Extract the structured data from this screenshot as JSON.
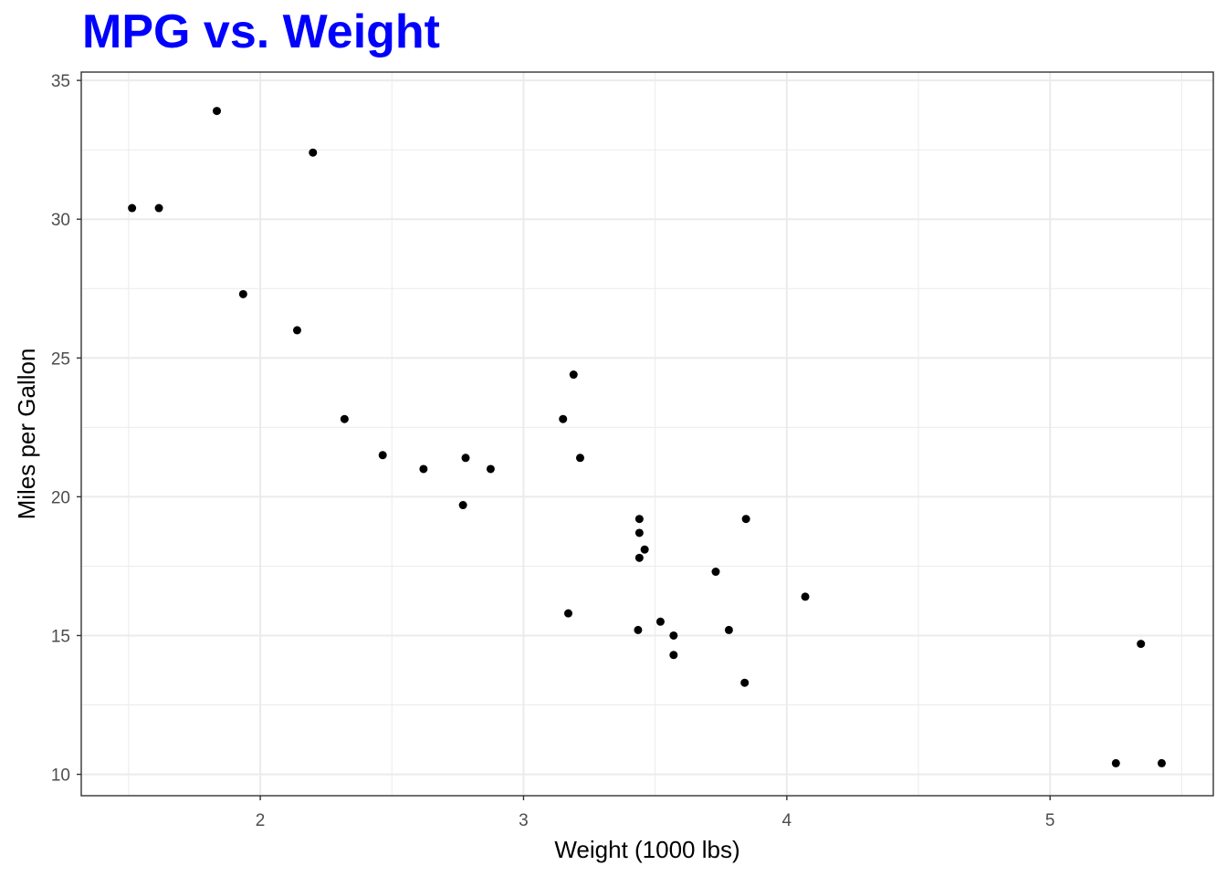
{
  "chart_data": {
    "type": "scatter",
    "title": "MPG vs. Weight",
    "xlabel": "Weight (1000 lbs)",
    "ylabel": "Miles per Gallon",
    "xlim": [
      1.32,
      5.62
    ],
    "ylim": [
      9.23,
      35.3
    ],
    "x_ticks": [
      2,
      3,
      4,
      5
    ],
    "y_ticks": [
      10,
      15,
      20,
      25,
      30,
      35
    ],
    "x_minor": [
      1.5,
      2.5,
      3.5,
      4.5,
      5.5
    ],
    "y_minor": [
      12.5,
      17.5,
      22.5,
      27.5,
      32.5
    ],
    "grid": true,
    "colors": {
      "title": "#0000ff",
      "points": "#000000",
      "grid": "#ebebeb",
      "panel_border": "#333333"
    },
    "points": [
      {
        "x": 1.513,
        "y": 30.4
      },
      {
        "x": 1.615,
        "y": 30.4
      },
      {
        "x": 1.835,
        "y": 33.9
      },
      {
        "x": 1.935,
        "y": 27.3
      },
      {
        "x": 2.14,
        "y": 26.0
      },
      {
        "x": 2.2,
        "y": 32.4
      },
      {
        "x": 2.32,
        "y": 22.8
      },
      {
        "x": 2.465,
        "y": 21.5
      },
      {
        "x": 2.62,
        "y": 21.0
      },
      {
        "x": 2.77,
        "y": 19.7
      },
      {
        "x": 2.78,
        "y": 21.4
      },
      {
        "x": 2.875,
        "y": 21.0
      },
      {
        "x": 3.15,
        "y": 22.8
      },
      {
        "x": 3.17,
        "y": 15.8
      },
      {
        "x": 3.19,
        "y": 24.4
      },
      {
        "x": 3.215,
        "y": 21.4
      },
      {
        "x": 3.435,
        "y": 15.2
      },
      {
        "x": 3.44,
        "y": 18.7
      },
      {
        "x": 3.44,
        "y": 19.2
      },
      {
        "x": 3.44,
        "y": 17.8
      },
      {
        "x": 3.46,
        "y": 18.1
      },
      {
        "x": 3.52,
        "y": 15.5
      },
      {
        "x": 3.57,
        "y": 14.3
      },
      {
        "x": 3.57,
        "y": 15.0
      },
      {
        "x": 3.73,
        "y": 17.3
      },
      {
        "x": 3.78,
        "y": 15.2
      },
      {
        "x": 3.84,
        "y": 13.3
      },
      {
        "x": 3.845,
        "y": 19.2
      },
      {
        "x": 4.07,
        "y": 16.4
      },
      {
        "x": 5.25,
        "y": 10.4
      },
      {
        "x": 5.345,
        "y": 14.7
      },
      {
        "x": 5.424,
        "y": 10.4
      }
    ]
  }
}
